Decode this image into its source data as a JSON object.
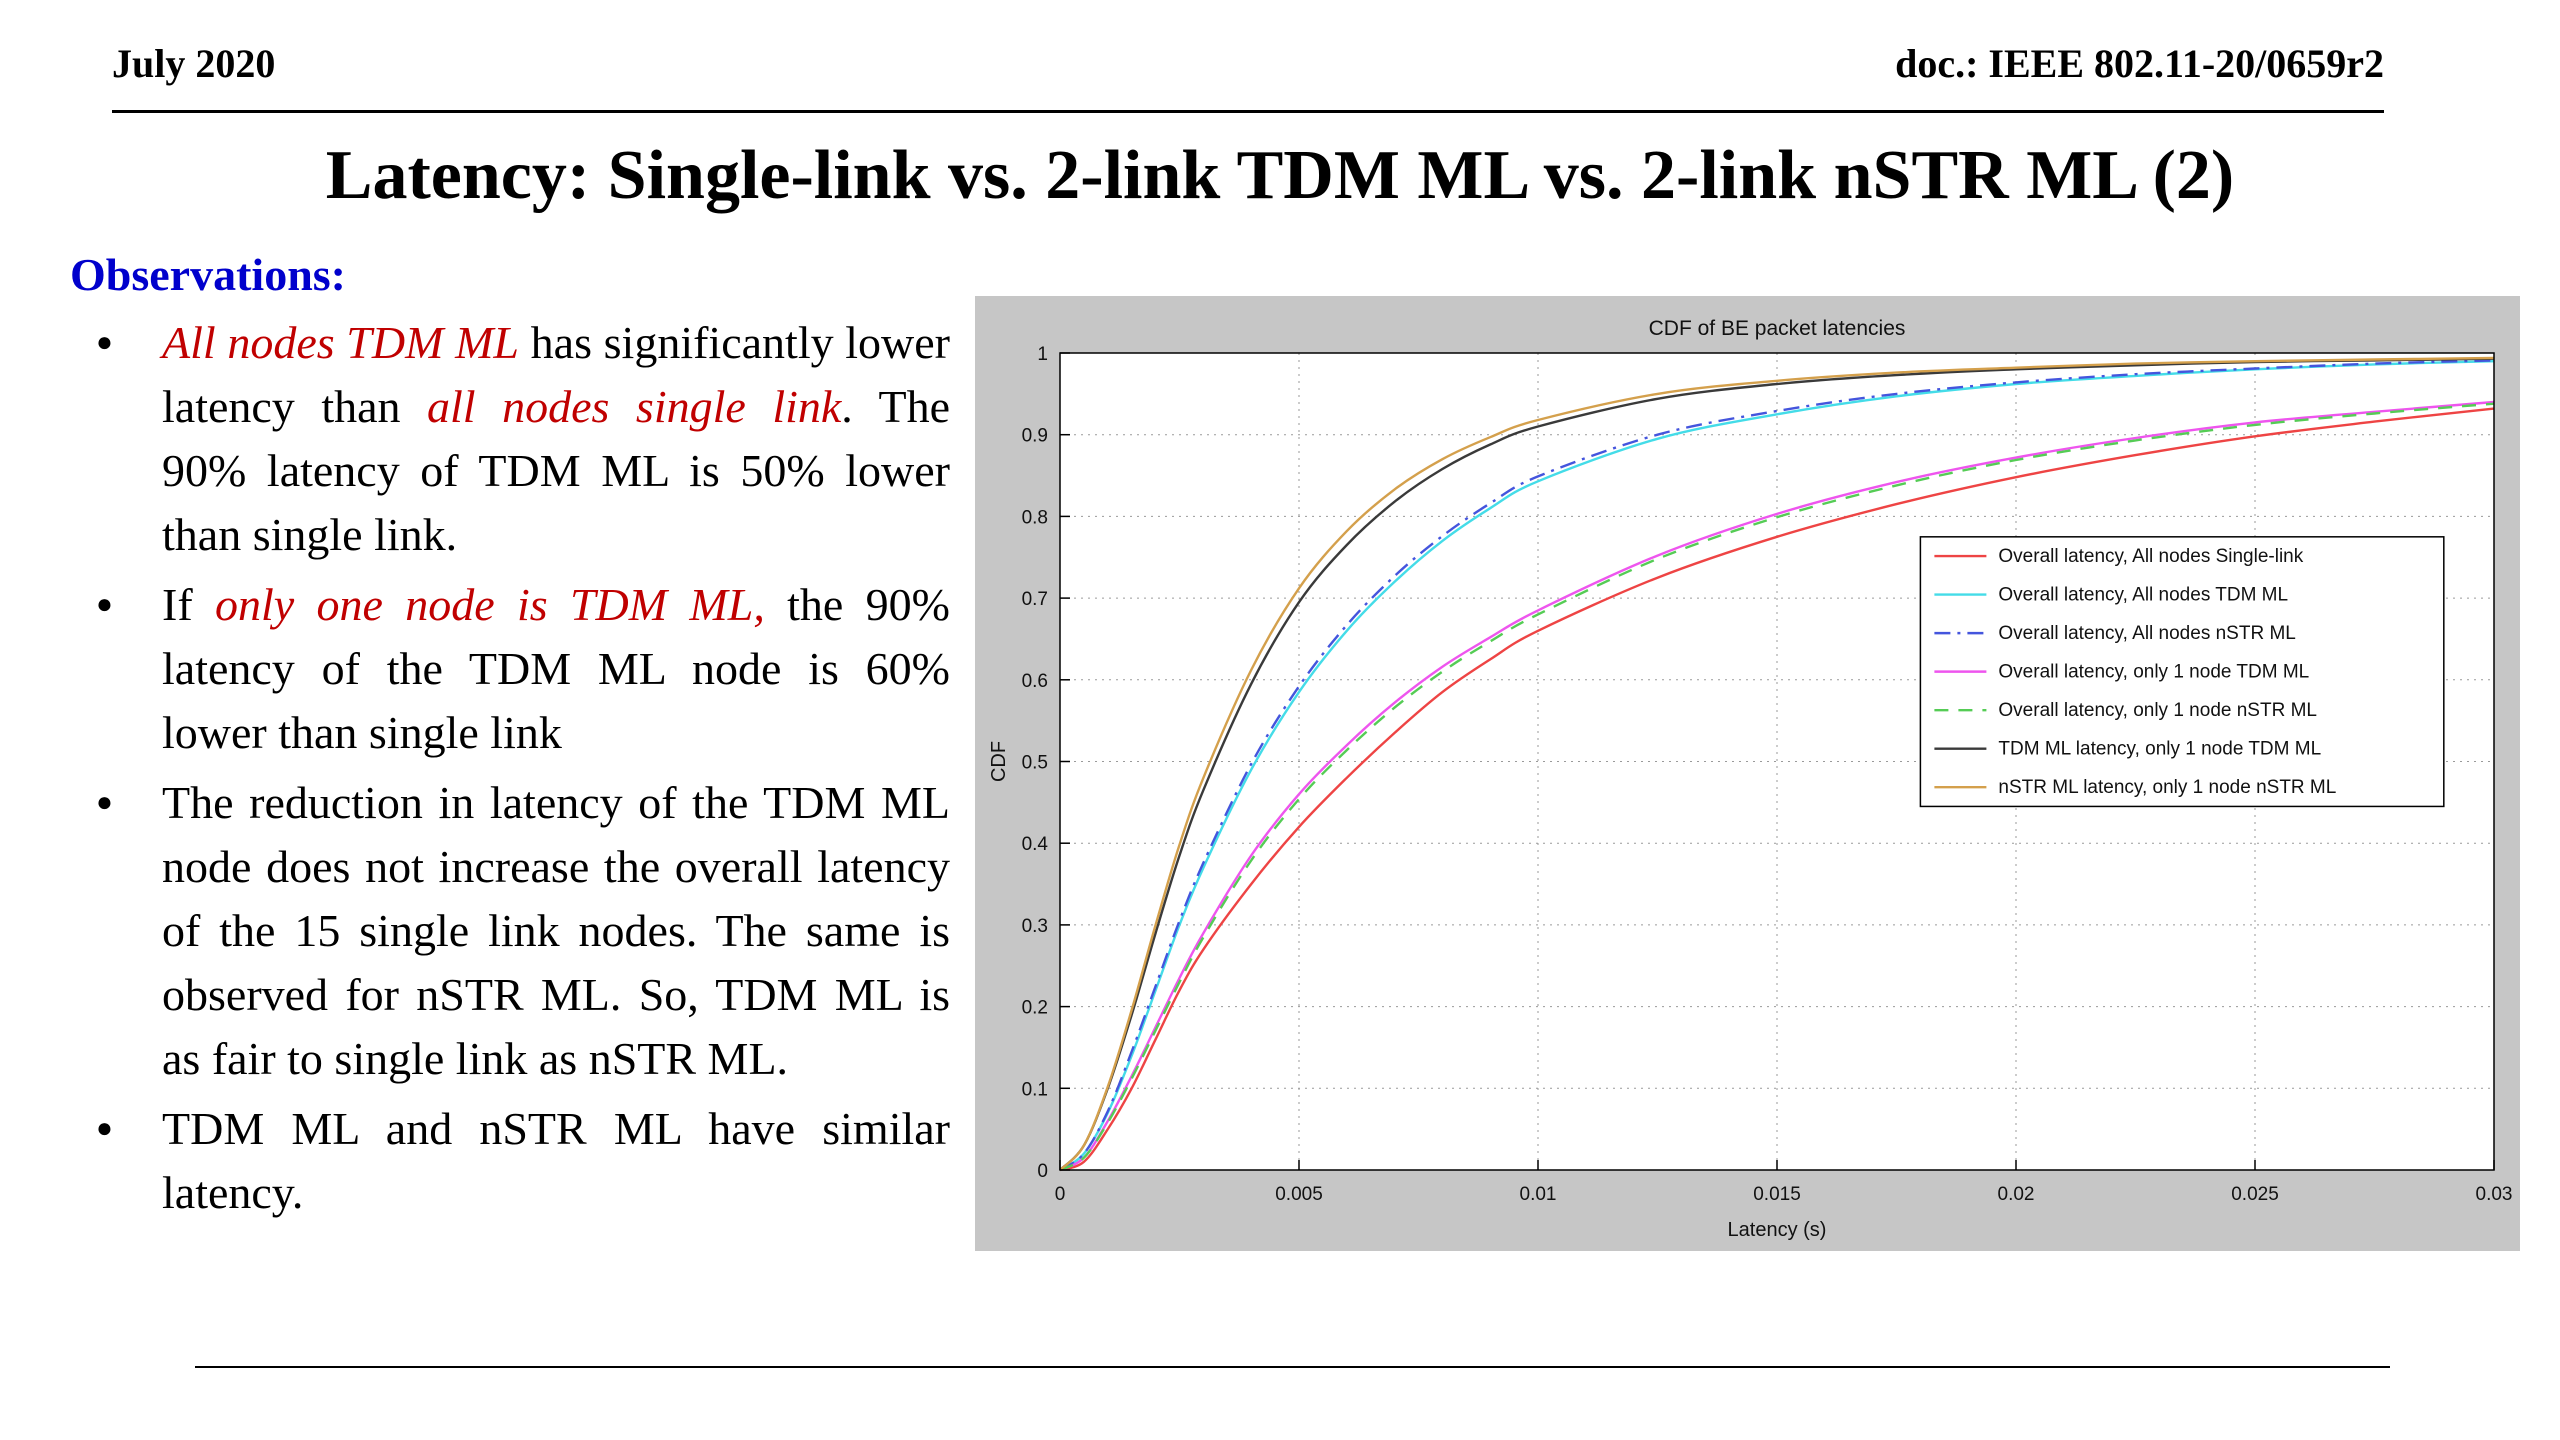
{
  "header": {
    "left": "July 2020",
    "right": "doc.: IEEE 802.11-20/0659r2"
  },
  "title": "Latency: Single-link vs. 2-link TDM ML vs. 2-link nSTR ML (2)",
  "colors": {
    "emphasis": "#c00000",
    "heading": "#0000cc",
    "figure_background": "#c6c6c6"
  },
  "observations": {
    "heading": "Observations:",
    "bullets": [
      {
        "segments": [
          {
            "text": "All nodes TDM ML",
            "em": true
          },
          {
            "text": " has significantly lower latency than ",
            "em": false
          },
          {
            "text": "all nodes single link",
            "em": true
          },
          {
            "text": ". The 90% latency of TDM ML is 50% lower than single link.",
            "em": false
          }
        ]
      },
      {
        "segments": [
          {
            "text": "If ",
            "em": false
          },
          {
            "text": "only one node is TDM ML,",
            "em": true
          },
          {
            "text": " the 90% latency of the TDM ML node is 60% lower than single link",
            "em": false
          }
        ]
      },
      {
        "segments": [
          {
            "text": "The reduction in latency of the TDM ML node does not increase the overall latency of the 15 single link nodes. The same is observed for nSTR ML. So, TDM ML is as fair to single link as nSTR ML.",
            "em": false
          }
        ]
      },
      {
        "segments": [
          {
            "text": "TDM ML and nSTR ML have similar latency.",
            "em": false
          }
        ]
      }
    ]
  },
  "chart_data": {
    "type": "line",
    "title": "CDF of BE packet latencies",
    "xlabel": "Latency (s)",
    "ylabel": "CDF",
    "xlim": [
      0,
      0.03
    ],
    "ylim": [
      0,
      1
    ],
    "xticks": [
      0,
      0.005,
      0.01,
      0.015,
      0.02,
      0.025,
      0.03
    ],
    "yticks": [
      0,
      0.1,
      0.2,
      0.3,
      0.4,
      0.5,
      0.6,
      0.7,
      0.8,
      0.9,
      1
    ],
    "grid": true,
    "legend_position": "right-center",
    "background": "#c6c6c6",
    "x": [
      0,
      0.0005,
      0.001,
      0.0015,
      0.002,
      0.0025,
      0.003,
      0.004,
      0.005,
      0.006,
      0.007,
      0.008,
      0.009,
      0.01,
      0.0125,
      0.015,
      0.0175,
      0.02,
      0.0225,
      0.025,
      0.0275,
      0.03
    ],
    "series": [
      {
        "name": "Overall latency, All nodes Single-link",
        "color": "#ee4444",
        "style": "solid",
        "values": [
          0,
          0.01,
          0.05,
          0.1,
          0.16,
          0.22,
          0.27,
          0.35,
          0.42,
          0.48,
          0.535,
          0.585,
          0.625,
          0.66,
          0.725,
          0.775,
          0.815,
          0.848,
          0.875,
          0.898,
          0.916,
          0.932
        ]
      },
      {
        "name": "Overall latency, All nodes TDM ML",
        "color": "#44dce8",
        "style": "solid",
        "values": [
          0,
          0.02,
          0.07,
          0.14,
          0.22,
          0.3,
          0.37,
          0.49,
          0.585,
          0.66,
          0.72,
          0.77,
          0.81,
          0.843,
          0.895,
          0.925,
          0.947,
          0.962,
          0.972,
          0.98,
          0.986,
          0.99
        ]
      },
      {
        "name": "Overall latency, All nodes nSTR ML",
        "color": "#4455dd",
        "style": "dashdot",
        "values": [
          0,
          0.02,
          0.072,
          0.145,
          0.225,
          0.305,
          0.376,
          0.497,
          0.592,
          0.667,
          0.727,
          0.776,
          0.816,
          0.849,
          0.9,
          0.929,
          0.95,
          0.964,
          0.974,
          0.981,
          0.987,
          0.991
        ]
      },
      {
        "name": "Overall latency, only 1 node TDM ML",
        "color": "#ee55ee",
        "style": "solid",
        "values": [
          0,
          0.015,
          0.06,
          0.115,
          0.175,
          0.235,
          0.29,
          0.385,
          0.46,
          0.52,
          0.572,
          0.616,
          0.652,
          0.685,
          0.752,
          0.803,
          0.842,
          0.872,
          0.896,
          0.915,
          0.928,
          0.94
        ]
      },
      {
        "name": "Overall latency, only 1 node nSTR ML",
        "color": "#55cc55",
        "style": "dashed",
        "values": [
          0,
          0.015,
          0.058,
          0.112,
          0.171,
          0.23,
          0.285,
          0.379,
          0.454,
          0.514,
          0.566,
          0.61,
          0.647,
          0.68,
          0.748,
          0.799,
          0.838,
          0.869,
          0.893,
          0.912,
          0.926,
          0.938
        ]
      },
      {
        "name": "TDM ML latency, only 1 node TDM ML",
        "color": "#3a3a3a",
        "style": "solid",
        "values": [
          0,
          0.03,
          0.1,
          0.19,
          0.29,
          0.385,
          0.465,
          0.595,
          0.695,
          0.765,
          0.818,
          0.858,
          0.888,
          0.91,
          0.944,
          0.962,
          0.973,
          0.98,
          0.985,
          0.989,
          0.991,
          0.993
        ]
      },
      {
        "name": "nSTR ML latency, only 1 node nSTR ML",
        "color": "#d4a04c",
        "style": "solid",
        "values": [
          0,
          0.03,
          0.102,
          0.196,
          0.3,
          0.398,
          0.48,
          0.612,
          0.712,
          0.782,
          0.833,
          0.87,
          0.897,
          0.918,
          0.95,
          0.966,
          0.976,
          0.982,
          0.987,
          0.99,
          0.992,
          0.994
        ]
      }
    ]
  }
}
